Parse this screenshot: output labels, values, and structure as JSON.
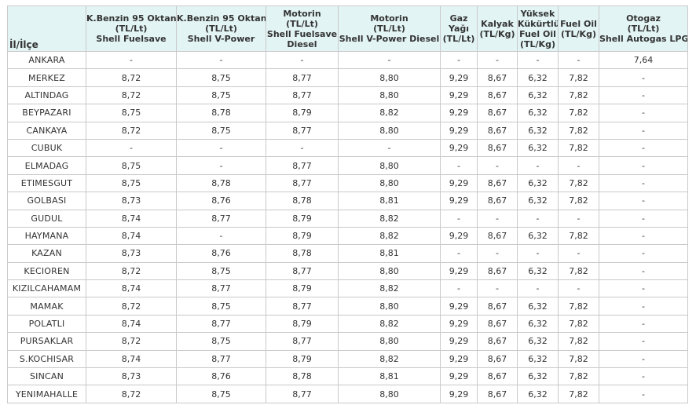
{
  "table": {
    "headers": [
      [
        "İl/İlçe"
      ],
      [
        "K.Benzin 95 Oktan",
        "(TL/Lt)",
        "Shell Fuelsave"
      ],
      [
        "K.Benzin 95 Oktan",
        "(TL/Lt)",
        "Shell V-Power"
      ],
      [
        "Motorin",
        "(TL/Lt)",
        "Shell Fuelsave",
        "Diesel"
      ],
      [
        "Motorin",
        "(TL/Lt)",
        "Shell V-Power Diesel"
      ],
      [
        "Gaz",
        "Yağı",
        "(TL/Lt)"
      ],
      [
        "Kalyak",
        "(TL/Kg)"
      ],
      [
        "Yüksek",
        "Kükürtlü",
        "Fuel Oil",
        "(TL/Kg)"
      ],
      [
        "Fuel Oil",
        "(TL/Kg)"
      ],
      [
        "Otogaz",
        "(TL/Lt)",
        "Shell Autogas LPG"
      ]
    ],
    "rows": [
      [
        "ANKARA",
        "-",
        "-",
        "-",
        "-",
        "-",
        "-",
        "-",
        "-",
        "7,64"
      ],
      [
        "MERKEZ",
        "8,72",
        "8,75",
        "8,77",
        "8,80",
        "9,29",
        "8,67",
        "6,32",
        "7,82",
        "-"
      ],
      [
        "ALTINDAG",
        "8,72",
        "8,75",
        "8,77",
        "8,80",
        "9,29",
        "8,67",
        "6,32",
        "7,82",
        "-"
      ],
      [
        "BEYPAZARI",
        "8,75",
        "8,78",
        "8,79",
        "8,82",
        "9,29",
        "8,67",
        "6,32",
        "7,82",
        "-"
      ],
      [
        "CANKAYA",
        "8,72",
        "8,75",
        "8,77",
        "8,80",
        "9,29",
        "8,67",
        "6,32",
        "7,82",
        "-"
      ],
      [
        "CUBUK",
        "-",
        "-",
        "-",
        "-",
        "9,29",
        "8,67",
        "6,32",
        "7,82",
        "-"
      ],
      [
        "ELMADAG",
        "8,75",
        "-",
        "8,77",
        "8,80",
        "-",
        "-",
        "-",
        "-",
        "-"
      ],
      [
        "ETIMESGUT",
        "8,75",
        "8,78",
        "8,77",
        "8,80",
        "9,29",
        "8,67",
        "6,32",
        "7,82",
        "-"
      ],
      [
        "GOLBASI",
        "8,73",
        "8,76",
        "8,78",
        "8,81",
        "9,29",
        "8,67",
        "6,32",
        "7,82",
        "-"
      ],
      [
        "GUDUL",
        "8,74",
        "8,77",
        "8,79",
        "8,82",
        "-",
        "-",
        "-",
        "-",
        "-"
      ],
      [
        "HAYMANA",
        "8,74",
        "-",
        "8,79",
        "8,82",
        "9,29",
        "8,67",
        "6,32",
        "7,82",
        "-"
      ],
      [
        "KAZAN",
        "8,73",
        "8,76",
        "8,78",
        "8,81",
        "-",
        "-",
        "-",
        "-",
        "-"
      ],
      [
        "KECIOREN",
        "8,72",
        "8,75",
        "8,77",
        "8,80",
        "9,29",
        "8,67",
        "6,32",
        "7,82",
        "-"
      ],
      [
        "KIZILCAHAMAM",
        "8,74",
        "8,77",
        "8,79",
        "8,82",
        "-",
        "-",
        "-",
        "-",
        "-"
      ],
      [
        "MAMAK",
        "8,72",
        "8,75",
        "8,77",
        "8,80",
        "9,29",
        "8,67",
        "6,32",
        "7,82",
        "-"
      ],
      [
        "POLATLI",
        "8,74",
        "8,77",
        "8,79",
        "8,82",
        "9,29",
        "8,67",
        "6,32",
        "7,82",
        "-"
      ],
      [
        "PURSAKLAR",
        "8,72",
        "8,75",
        "8,77",
        "8,80",
        "9,29",
        "8,67",
        "6,32",
        "7,82",
        "-"
      ],
      [
        "S.KOCHISAR",
        "8,74",
        "8,77",
        "8,79",
        "8,82",
        "9,29",
        "8,67",
        "6,32",
        "7,82",
        "-"
      ],
      [
        "SINCAN",
        "8,73",
        "8,76",
        "8,78",
        "8,81",
        "9,29",
        "8,67",
        "6,32",
        "7,82",
        "-"
      ],
      [
        "YENIMAHALLE",
        "8,72",
        "8,75",
        "8,77",
        "8,80",
        "9,29",
        "8,67",
        "6,32",
        "7,82",
        "-"
      ]
    ]
  },
  "colors": {
    "header_bg": "#e3f4f4",
    "border": "#c9c9c9",
    "text": "#333333"
  }
}
